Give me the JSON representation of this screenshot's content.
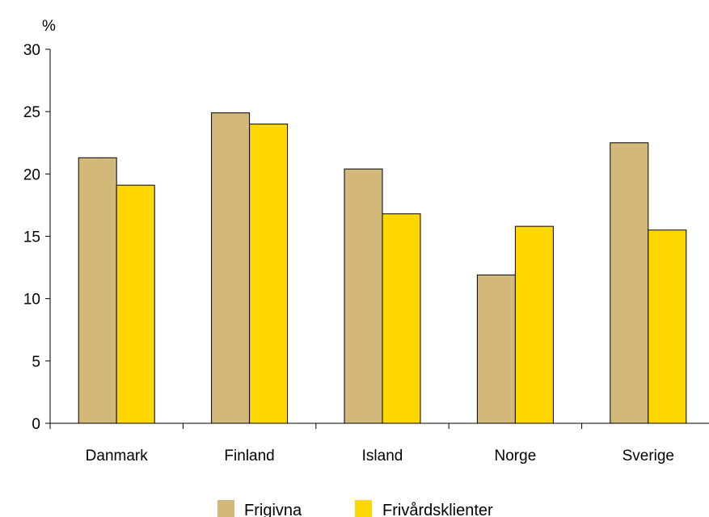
{
  "chart_data": {
    "type": "bar",
    "ylabel": "%",
    "categories": [
      "Danmark",
      "Finland",
      "Island",
      "Norge",
      "Sverige"
    ],
    "series": [
      {
        "name": "Frigivna",
        "color": "#D2B97A",
        "values": [
          21.3,
          24.9,
          20.4,
          11.9,
          22.5
        ]
      },
      {
        "name": "Frivårdsklienter",
        "color": "#FFD700",
        "values": [
          19.1,
          24.0,
          16.8,
          15.8,
          15.5
        ]
      }
    ],
    "ylim": [
      0,
      30
    ],
    "yticks": [
      0,
      5,
      10,
      15,
      20,
      25,
      30
    ],
    "grid": false,
    "legend_position": "bottom"
  }
}
